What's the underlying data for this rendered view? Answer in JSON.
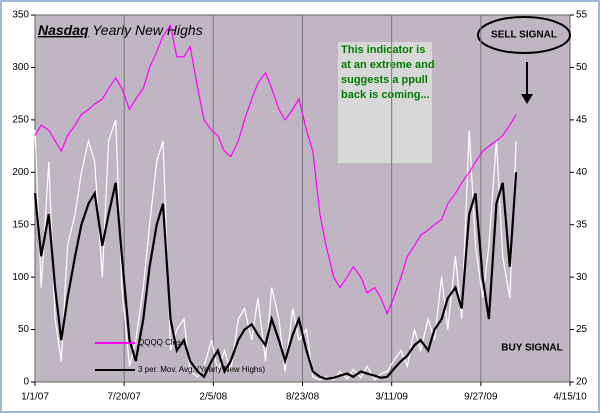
{
  "chart_data": {
    "type": "line",
    "title": {
      "brand": "Nasdaq",
      "text": "Yearly New Highs"
    },
    "x": [
      "1/1/07",
      "1/15/07",
      "2/1/07",
      "2/15/07",
      "3/1/07",
      "3/15/07",
      "4/1/07",
      "4/15/07",
      "5/1/07",
      "5/15/07",
      "6/1/07",
      "6/15/07",
      "7/1/07",
      "7/15/07",
      "8/1/07",
      "8/15/07",
      "9/1/07",
      "9/15/07",
      "10/1/07",
      "10/15/07",
      "11/1/07",
      "11/15/07",
      "12/1/07",
      "12/15/07",
      "1/1/08",
      "1/15/08",
      "2/1/08",
      "2/15/08",
      "3/1/08",
      "3/15/08",
      "4/1/08",
      "4/15/08",
      "5/1/08",
      "5/15/08",
      "6/1/08",
      "6/15/08",
      "7/1/08",
      "7/15/08",
      "8/1/08",
      "8/15/08",
      "9/1/08",
      "9/15/08",
      "10/1/08",
      "10/15/08",
      "11/1/08",
      "11/15/08",
      "12/1/08",
      "12/15/08",
      "1/1/09",
      "1/15/09",
      "2/1/09",
      "2/15/09",
      "3/1/09",
      "3/15/09",
      "4/1/09",
      "4/15/09",
      "5/1/09",
      "5/15/09",
      "6/1/09",
      "6/15/09",
      "7/1/09",
      "7/15/09",
      "8/1/09",
      "8/15/09",
      "9/1/09",
      "9/15/09",
      "10/1/09",
      "10/15/09",
      "11/1/09",
      "11/15/09",
      "12/1/09",
      "12/15/09"
    ],
    "series": [
      {
        "color": "#ffffff",
        "values": [
          240,
          90,
          210,
          60,
          20,
          130,
          160,
          200,
          230,
          210,
          100,
          230,
          250,
          90,
          15,
          40,
          90,
          150,
          210,
          230,
          30,
          50,
          60,
          10,
          5,
          15,
          40,
          10,
          30,
          10,
          60,
          70,
          40,
          80,
          20,
          90,
          60,
          10,
          70,
          40,
          50,
          5,
          2,
          5,
          2,
          10,
          3,
          12,
          4,
          15,
          2,
          8,
          10,
          20,
          30,
          15,
          50,
          30,
          60,
          40,
          100,
          50,
          120,
          60,
          240,
          130,
          80,
          130,
          230,
          120,
          80,
          230
        ]
      },
      {
        "name": "3 per. Mov. Avg. (Yearly New Highs)",
        "color": "#000000",
        "values": [
          180,
          120,
          160,
          90,
          40,
          80,
          120,
          150,
          170,
          180,
          130,
          160,
          190,
          120,
          40,
          20,
          60,
          110,
          150,
          170,
          60,
          30,
          40,
          20,
          10,
          5,
          20,
          30,
          10,
          20,
          40,
          50,
          55,
          45,
          35,
          60,
          40,
          20,
          45,
          60,
          30,
          10,
          5,
          3,
          4,
          6,
          8,
          5,
          10,
          8,
          6,
          4,
          5,
          12,
          20,
          25,
          35,
          40,
          30,
          50,
          60,
          80,
          90,
          70,
          160,
          180,
          100,
          60,
          170,
          190,
          110,
          200
        ]
      },
      {
        "name": "QQQQ Close",
        "color": "#ff00ff",
        "axis": "y2",
        "values": [
          43.5,
          44.5,
          44,
          43,
          42,
          43.5,
          44.5,
          45.5,
          46,
          46.5,
          47,
          48,
          49,
          48,
          46,
          47,
          48,
          50,
          51.5,
          53,
          54,
          51,
          51,
          52,
          48,
          45,
          44,
          43.5,
          42,
          41.5,
          43,
          45,
          47,
          48.5,
          49.5,
          48,
          46,
          45,
          46,
          47,
          44,
          42,
          36,
          33,
          30,
          29,
          30,
          31,
          30,
          28.5,
          29,
          28,
          26.5,
          28,
          30,
          32,
          33,
          34,
          34.5,
          35,
          35.5,
          37,
          38,
          39,
          40,
          41,
          42,
          42.5,
          43,
          43.5,
          44.5,
          45.5
        ]
      }
    ],
    "xlim": [
      "1/1/07",
      "4/15/10"
    ],
    "xticks": [
      "1/1/07",
      "7/20/07",
      "2/5/08",
      "8/23/08",
      "3/11/09",
      "9/27/09",
      "4/15/10"
    ],
    "ylim": [
      0,
      350
    ],
    "yticks": [
      0,
      50,
      100,
      150,
      200,
      250,
      300,
      350
    ],
    "y2lim": [
      20,
      55
    ],
    "y2ticks": [
      20,
      25,
      30,
      35,
      40,
      45,
      50,
      55
    ],
    "grid": true,
    "annotations": {
      "note": [
        "This indicator is",
        "at an extreme and",
        "suggests a ppull",
        "back is coming..."
      ],
      "sell": "SELL SIGNAL",
      "buy": "BUY SIGNAL"
    }
  }
}
